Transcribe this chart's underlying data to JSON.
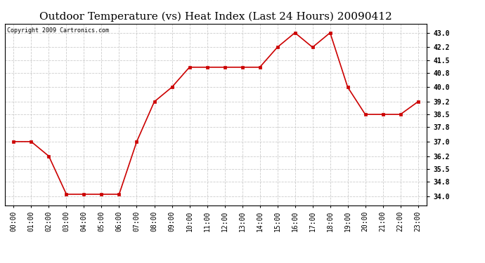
{
  "title": "Outdoor Temperature (vs) Heat Index (Last 24 Hours) 20090412",
  "copyright_text": "Copyright 2009 Cartronics.com",
  "x_labels": [
    "00:00",
    "01:00",
    "02:00",
    "03:00",
    "04:00",
    "05:00",
    "06:00",
    "07:00",
    "08:00",
    "09:00",
    "10:00",
    "11:00",
    "12:00",
    "13:00",
    "14:00",
    "15:00",
    "16:00",
    "17:00",
    "18:00",
    "19:00",
    "20:00",
    "21:00",
    "22:00",
    "23:00"
  ],
  "y_values": [
    37.0,
    37.0,
    36.2,
    34.1,
    34.1,
    34.1,
    34.1,
    37.0,
    39.2,
    40.0,
    41.1,
    41.1,
    41.1,
    41.1,
    41.1,
    42.2,
    43.0,
    42.2,
    43.0,
    40.0,
    38.5,
    38.5,
    38.5,
    39.2
  ],
  "line_color": "#cc0000",
  "marker": "s",
  "marker_size": 2.5,
  "marker_color": "#cc0000",
  "ylim": [
    33.5,
    43.5
  ],
  "yticks": [
    34.0,
    34.8,
    35.5,
    36.2,
    37.0,
    37.8,
    38.5,
    39.2,
    40.0,
    40.8,
    41.5,
    42.2,
    43.0
  ],
  "grid_color": "#cccccc",
  "grid_linestyle": "--",
  "bg_color": "#ffffff",
  "plot_bg_color": "#ffffff",
  "title_fontsize": 11,
  "copyright_fontsize": 6,
  "tick_fontsize": 7,
  "line_width": 1.2
}
